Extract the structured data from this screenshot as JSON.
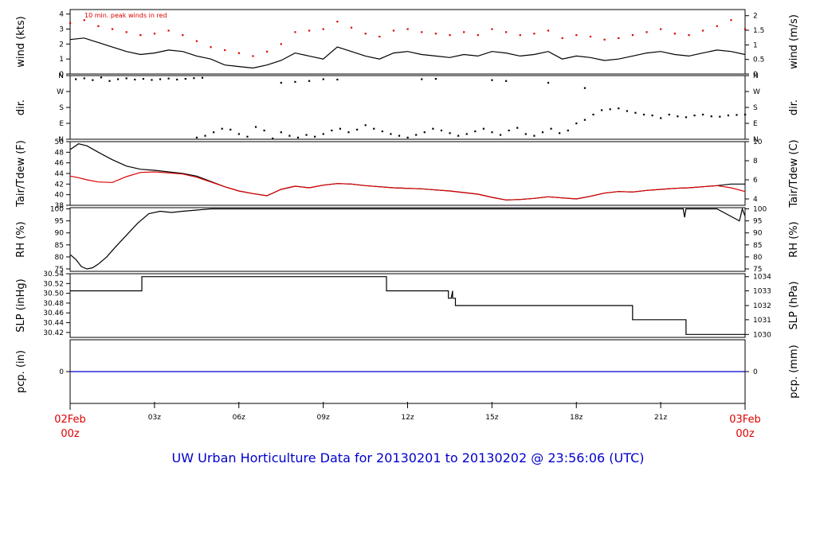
{
  "caption": "UW Urban Horticulture Data for 20130201  to  20130202 @ 23:56:06  (UTC)",
  "colors": {
    "axis": "#000000",
    "red": "#dd0000",
    "blue": "#0000cc",
    "caption": "#0000cc"
  },
  "x_axis": {
    "range_hours": [
      0,
      24
    ],
    "ticks": [
      {
        "h": 3,
        "label": "03z"
      },
      {
        "h": 6,
        "label": "06z"
      },
      {
        "h": 9,
        "label": "09z"
      },
      {
        "h": 12,
        "label": "12z"
      },
      {
        "h": 15,
        "label": "15z"
      },
      {
        "h": 18,
        "label": "18z"
      },
      {
        "h": 21,
        "label": "21z"
      }
    ],
    "start_label": [
      "02Feb",
      "00z"
    ],
    "end_label": [
      "03Feb",
      "00z"
    ]
  },
  "chart_data": [
    {
      "id": "wind",
      "type": "line",
      "ylabel_left": "wind (kts)",
      "ylabel_right": "wind (m/s)",
      "ylim": [
        0,
        4.3
      ],
      "left_ticks": [
        0,
        1,
        2,
        3,
        4
      ],
      "right_ticks": [
        {
          "v": 0,
          "label": "0"
        },
        {
          "v": 0.97,
          "label": "0.5"
        },
        {
          "v": 1.94,
          "label": "1"
        },
        {
          "v": 2.92,
          "label": "1.5"
        },
        {
          "v": 3.89,
          "label": "2"
        }
      ],
      "annotation": "10 min. peak winds in red",
      "series": [
        {
          "name": "wind",
          "color": "#000000",
          "x": [
            0,
            0.5,
            1,
            1.5,
            2,
            2.5,
            3,
            3.5,
            4,
            4.5,
            5,
            5.5,
            6,
            6.5,
            7,
            7.5,
            8,
            8.5,
            9,
            9.5,
            10,
            10.5,
            11,
            11.5,
            12,
            12.5,
            13,
            13.5,
            14,
            14.5,
            15,
            15.5,
            16,
            16.5,
            17,
            17.5,
            18,
            18.5,
            19,
            19.5,
            20,
            20.5,
            21,
            21.5,
            22,
            22.5,
            23,
            23.5,
            24
          ],
          "values": [
            2.3,
            2.4,
            2.1,
            1.8,
            1.5,
            1.3,
            1.4,
            1.6,
            1.5,
            1.2,
            1.0,
            0.6,
            0.5,
            0.4,
            0.6,
            0.9,
            1.4,
            1.2,
            1.0,
            1.8,
            1.5,
            1.2,
            1.0,
            1.4,
            1.5,
            1.3,
            1.2,
            1.1,
            1.3,
            1.2,
            1.5,
            1.4,
            1.2,
            1.3,
            1.5,
            1.0,
            1.2,
            1.1,
            0.9,
            1.0,
            1.2,
            1.4,
            1.5,
            1.3,
            1.2,
            1.4,
            1.6,
            1.5,
            1.3
          ]
        },
        {
          "name": "peak",
          "color": "#dd0000",
          "style": "dots",
          "x": [
            0,
            0.5,
            1,
            1.5,
            2,
            2.5,
            3,
            3.5,
            4,
            4.5,
            5,
            5.5,
            6,
            6.5,
            7,
            7.5,
            8,
            8.5,
            9,
            9.5,
            10,
            10.5,
            11,
            11.5,
            12,
            12.5,
            13,
            13.5,
            14,
            14.5,
            15,
            15.5,
            16,
            16.5,
            17,
            17.5,
            18,
            18.5,
            19,
            19.5,
            20,
            20.5,
            21,
            21.5,
            22,
            22.5,
            23,
            23.5,
            24
          ],
          "values": [
            3.4,
            3.6,
            3.2,
            3.0,
            2.8,
            2.6,
            2.7,
            2.9,
            2.6,
            2.2,
            1.8,
            1.6,
            1.4,
            1.2,
            1.5,
            2.0,
            2.8,
            2.9,
            3.0,
            3.5,
            3.1,
            2.7,
            2.5,
            2.9,
            3.0,
            2.8,
            2.7,
            2.6,
            2.8,
            2.6,
            3.0,
            2.8,
            2.6,
            2.7,
            2.9,
            2.4,
            2.6,
            2.5,
            2.3,
            2.4,
            2.6,
            2.8,
            3.0,
            2.7,
            2.6,
            2.9,
            3.2,
            3.6,
            3.0
          ]
        }
      ]
    },
    {
      "id": "dir",
      "type": "scatter",
      "ylabel_left": "dir.",
      "ylabel_right": "dir.",
      "ylim": [
        0,
        360
      ],
      "left_ticks": [
        {
          "v": 0,
          "label": "N"
        },
        {
          "v": 90,
          "label": "E"
        },
        {
          "v": 180,
          "label": "S"
        },
        {
          "v": 270,
          "label": "W"
        },
        {
          "v": 360,
          "label": "N"
        }
      ],
      "right_ticks": [
        {
          "v": 0,
          "label": "N"
        },
        {
          "v": 90,
          "label": "E"
        },
        {
          "v": 180,
          "label": "S"
        },
        {
          "v": 270,
          "label": "W"
        },
        {
          "v": 360,
          "label": "N"
        }
      ],
      "series": [
        {
          "name": "direction",
          "color": "#000000",
          "x": [
            0.2,
            0.5,
            0.8,
            1.1,
            1.4,
            1.7,
            2.0,
            2.3,
            2.6,
            2.9,
            3.2,
            3.5,
            3.8,
            4.1,
            4.4,
            4.7,
            4.5,
            4.8,
            5.1,
            5.4,
            5.7,
            6.0,
            6.3,
            6.6,
            6.9,
            7.2,
            7.5,
            7.8,
            8.1,
            8.4,
            8.7,
            9.0,
            9.3,
            9.6,
            9.9,
            10.2,
            10.5,
            10.8,
            11.1,
            11.4,
            11.7,
            12.0,
            12.3,
            12.6,
            12.9,
            13.2,
            13.5,
            13.8,
            14.1,
            14.4,
            14.7,
            15.0,
            15.3,
            15.6,
            15.9,
            16.2,
            16.5,
            16.8,
            17.1,
            17.4,
            17.7,
            18.0,
            18.3,
            18.6,
            18.9,
            19.2,
            19.5,
            19.8,
            20.1,
            20.4,
            20.7,
            21.0,
            21.3,
            21.6,
            21.9,
            22.2,
            22.5,
            22.8,
            23.1,
            23.4,
            23.7,
            24.0,
            7.5,
            8.0,
            8.5,
            9.0,
            9.5,
            12.5,
            13.0,
            15.0,
            15.5,
            17.0,
            18.3
          ],
          "values": [
            340,
            345,
            335,
            350,
            330,
            340,
            345,
            338,
            342,
            336,
            340,
            344,
            338,
            342,
            346,
            348,
            10,
            20,
            40,
            60,
            55,
            30,
            15,
            70,
            50,
            5,
            40,
            20,
            10,
            25,
            15,
            30,
            50,
            60,
            40,
            55,
            80,
            60,
            45,
            30,
            20,
            10,
            25,
            40,
            60,
            50,
            35,
            20,
            30,
            45,
            60,
            40,
            25,
            50,
            65,
            30,
            20,
            40,
            60,
            35,
            50,
            90,
            110,
            140,
            165,
            170,
            175,
            160,
            150,
            140,
            135,
            120,
            140,
            130,
            125,
            135,
            140,
            130,
            128,
            135,
            138,
            140,
            320,
            325,
            330,
            340,
            338,
            340,
            342,
            335,
            330,
            320,
            290
          ]
        }
      ]
    },
    {
      "id": "temp",
      "type": "line",
      "ylabel_left": "Tair/Tdew (F)",
      "ylabel_right": "Tair/Tdew (C)",
      "ylim": [
        38,
        50
      ],
      "left_ticks": [
        38,
        40,
        42,
        44,
        46,
        48,
        50
      ],
      "right_ticks": [
        {
          "v": 39.2,
          "label": "4"
        },
        {
          "v": 42.8,
          "label": "6"
        },
        {
          "v": 46.4,
          "label": "8"
        },
        {
          "v": 50.0,
          "label": "10"
        }
      ],
      "series": [
        {
          "name": "Tair",
          "color": "#000000",
          "x": [
            0,
            0.3,
            0.6,
            1,
            1.5,
            2,
            2.5,
            3,
            3.5,
            4,
            4.5,
            5,
            5.5,
            6,
            6.5,
            7,
            7.5,
            8,
            8.5,
            9,
            9.5,
            10,
            10.5,
            11,
            11.5,
            12,
            12.5,
            13,
            13.5,
            14,
            14.5,
            15,
            15.5,
            16,
            16.5,
            17,
            17.5,
            18,
            18.5,
            19,
            19.5,
            20,
            20.5,
            21,
            21.5,
            22,
            22.5,
            23,
            23.5,
            24
          ],
          "values": [
            48.5,
            49.6,
            49.2,
            48.0,
            46.6,
            45.4,
            44.8,
            44.6,
            44.3,
            44.0,
            43.5,
            42.5,
            41.5,
            40.7,
            40.2,
            39.8,
            41.0,
            41.6,
            41.3,
            41.8,
            42.1,
            42.0,
            41.7,
            41.5,
            41.3,
            41.2,
            41.1,
            40.9,
            40.7,
            40.4,
            40.1,
            39.5,
            39.0,
            39.1,
            39.3,
            39.6,
            39.4,
            39.2,
            39.7,
            40.3,
            40.6,
            40.5,
            40.8,
            41.0,
            41.2,
            41.3,
            41.5,
            41.7,
            42.0,
            42.0
          ]
        },
        {
          "name": "Tdew",
          "color": "#dd0000",
          "x": [
            0,
            0.3,
            0.6,
            1,
            1.5,
            2,
            2.5,
            3,
            3.5,
            4,
            4.5,
            5,
            5.5,
            6,
            6.5,
            7,
            7.5,
            8,
            8.5,
            9,
            9.5,
            10,
            10.5,
            11,
            11.5,
            12,
            12.5,
            13,
            13.5,
            14,
            14.5,
            15,
            15.5,
            16,
            16.5,
            17,
            17.5,
            18,
            18.5,
            19,
            19.5,
            20,
            20.5,
            21,
            21.5,
            22,
            22.5,
            23,
            23.5,
            24
          ],
          "values": [
            43.5,
            43.2,
            42.8,
            42.4,
            42.3,
            43.4,
            44.2,
            44.3,
            44.1,
            43.9,
            43.3,
            42.4,
            41.5,
            40.7,
            40.2,
            39.8,
            41.0,
            41.6,
            41.3,
            41.8,
            42.1,
            42.0,
            41.7,
            41.5,
            41.3,
            41.2,
            41.1,
            40.9,
            40.7,
            40.4,
            40.1,
            39.5,
            39.0,
            39.1,
            39.3,
            39.6,
            39.4,
            39.2,
            39.7,
            40.3,
            40.6,
            40.5,
            40.8,
            41.0,
            41.2,
            41.3,
            41.5,
            41.7,
            41.3,
            40.6
          ]
        }
      ]
    },
    {
      "id": "rh",
      "type": "line",
      "ylabel_left": "RH (%)",
      "ylabel_right": "RH (%)",
      "ylim": [
        74,
        100.5
      ],
      "left_ticks": [
        75,
        80,
        85,
        90,
        95,
        100
      ],
      "right_ticks": [
        {
          "v": 75,
          "label": "75"
        },
        {
          "v": 80,
          "label": "80"
        },
        {
          "v": 85,
          "label": "85"
        },
        {
          "v": 90,
          "label": "90"
        },
        {
          "v": 95,
          "label": "95"
        },
        {
          "v": 100,
          "label": "100"
        }
      ],
      "series": [
        {
          "name": "RH",
          "color": "#000000",
          "x": [
            0,
            0.2,
            0.4,
            0.6,
            0.8,
            1.0,
            1.3,
            1.6,
            2.0,
            2.4,
            2.8,
            3.2,
            3.6,
            4.0,
            4.5,
            5.0,
            5.5,
            6,
            8,
            10,
            12,
            14,
            16,
            18,
            20,
            21.5,
            21.8,
            21.85,
            21.9,
            22.0,
            23.0,
            23.8,
            23.9,
            24.0
          ],
          "values": [
            81,
            79,
            76,
            75,
            75.5,
            77,
            80,
            84,
            89,
            94,
            98,
            99,
            98.5,
            99,
            99.5,
            100,
            100,
            100,
            100,
            100,
            100,
            100,
            100,
            100,
            100,
            100,
            100,
            96.5,
            100,
            100,
            100,
            95,
            100,
            97
          ]
        }
      ]
    },
    {
      "id": "slp",
      "type": "line",
      "ylabel_left": "SLP (inHg)",
      "ylabel_right": "SLP (hPa)",
      "ylim": [
        30.41,
        30.54
      ],
      "left_ticks": [
        {
          "v": 30.42,
          "label": "30.42"
        },
        {
          "v": 30.44,
          "label": "30.44"
        },
        {
          "v": 30.46,
          "label": "30.46"
        },
        {
          "v": 30.48,
          "label": "30.48"
        },
        {
          "v": 30.5,
          "label": "30.50"
        },
        {
          "v": 30.52,
          "label": "30.52"
        },
        {
          "v": 30.54,
          "label": "30.54"
        }
      ],
      "right_ticks": [
        {
          "v": 30.416,
          "label": "1030"
        },
        {
          "v": 30.446,
          "label": "1031"
        },
        {
          "v": 30.475,
          "label": "1032"
        },
        {
          "v": 30.505,
          "label": "1033"
        },
        {
          "v": 30.534,
          "label": "1034"
        }
      ],
      "series": [
        {
          "name": "SLP",
          "color": "#000000",
          "x": [
            0,
            2.55,
            2.55,
            11.25,
            11.25,
            13.45,
            13.45,
            13.55,
            13.6,
            13.6,
            13.7,
            13.7,
            20.0,
            20.0,
            21.9,
            21.9,
            24
          ],
          "values": [
            30.505,
            30.505,
            30.534,
            30.534,
            30.505,
            30.505,
            30.49,
            30.49,
            30.505,
            30.49,
            30.49,
            30.475,
            30.475,
            30.446,
            30.446,
            30.416,
            30.416
          ]
        }
      ]
    },
    {
      "id": "pcp",
      "type": "line",
      "ylabel_left": "pcp. (in)",
      "ylabel_right": "pcp. (mm)",
      "ylim": [
        -1,
        1
      ],
      "left_ticks": [
        {
          "v": 0,
          "label": "0"
        }
      ],
      "right_ticks": [
        {
          "v": 0,
          "label": "0"
        }
      ],
      "series": [
        {
          "name": "pcp",
          "color": "#0000cc",
          "x": [
            0,
            24
          ],
          "values": [
            0,
            0
          ]
        }
      ]
    }
  ]
}
